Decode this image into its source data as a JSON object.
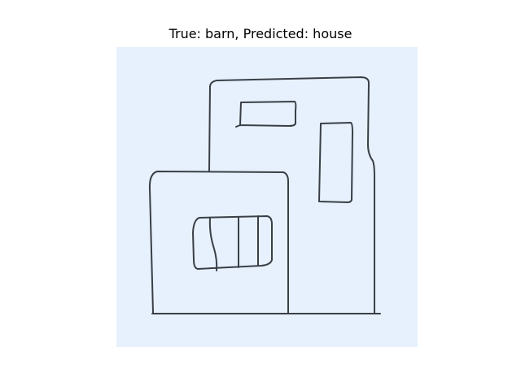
{
  "title": "True: barn, Predicted: house",
  "colors": {
    "panel_background": "#e6f1fd",
    "stroke": "#3a3f47"
  },
  "image": {
    "subject": "hand-drawn sketch"
  }
}
